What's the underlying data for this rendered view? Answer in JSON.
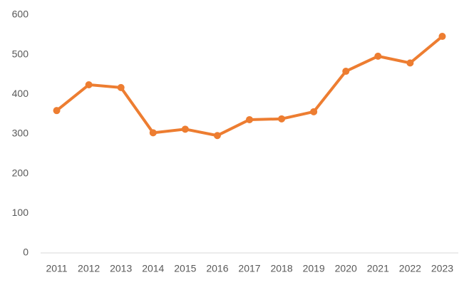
{
  "chart_data": {
    "type": "line",
    "categories": [
      "2011",
      "2012",
      "2013",
      "2014",
      "2015",
      "2016",
      "2017",
      "2018",
      "2019",
      "2020",
      "2021",
      "2022",
      "2023"
    ],
    "values": [
      359,
      424,
      417,
      303,
      312,
      296,
      336,
      338,
      356,
      458,
      496,
      479,
      546
    ],
    "color": "#ed7d31",
    "ylim": [
      0,
      600
    ],
    "yticks": [
      0,
      100,
      200,
      300,
      400,
      500,
      600
    ],
    "grid": false
  }
}
